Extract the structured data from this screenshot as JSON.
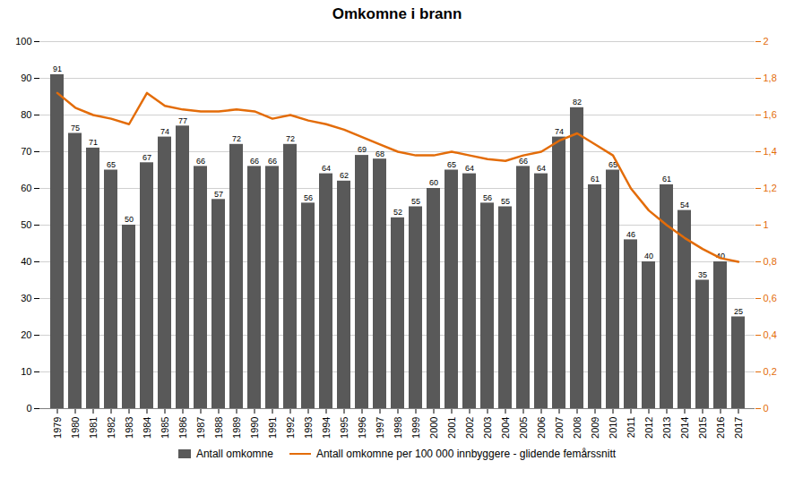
{
  "chart_data": {
    "type": "bar",
    "title": "Omkomne i brann",
    "categories": [
      "1979",
      "1980",
      "1981",
      "1982",
      "1983",
      "1984",
      "1985",
      "1986",
      "1987",
      "1988",
      "1989",
      "1990",
      "1991",
      "1992",
      "1993",
      "1994",
      "1995",
      "1996",
      "1997",
      "1998",
      "1999",
      "2000",
      "2001",
      "2002",
      "2003",
      "2004",
      "2005",
      "2006",
      "2007",
      "2008",
      "2009",
      "2010",
      "2011",
      "2012",
      "2013",
      "2014",
      "2015",
      "2016",
      "2017"
    ],
    "series": [
      {
        "name": "Antall omkomne",
        "type": "bar",
        "color": "#595959",
        "values": [
          91,
          75,
          71,
          65,
          50,
          67,
          74,
          77,
          66,
          57,
          72,
          66,
          66,
          72,
          56,
          64,
          62,
          69,
          68,
          52,
          55,
          60,
          65,
          64,
          56,
          55,
          66,
          64,
          74,
          82,
          61,
          65,
          46,
          40,
          61,
          54,
          35,
          40,
          25
        ]
      },
      {
        "name": "Antall omkomne per 100 000 innbyggere - glidende femårssnitt",
        "type": "line",
        "color": "#E36C09",
        "axis": "y2",
        "values": [
          1.72,
          1.64,
          1.6,
          1.58,
          1.55,
          1.72,
          1.65,
          1.63,
          1.62,
          1.62,
          1.63,
          1.62,
          1.58,
          1.6,
          1.57,
          1.55,
          1.52,
          1.48,
          1.44,
          1.4,
          1.38,
          1.38,
          1.4,
          1.38,
          1.36,
          1.35,
          1.38,
          1.4,
          1.46,
          1.5,
          1.44,
          1.38,
          1.2,
          1.08,
          1.0,
          0.93,
          0.87,
          0.82,
          0.8
        ]
      }
    ],
    "ylim": [
      0,
      100
    ],
    "yticks": [
      0,
      10,
      20,
      30,
      40,
      50,
      60,
      70,
      80,
      90,
      100
    ],
    "y2lim": [
      0,
      2
    ],
    "y2ticks": [
      0,
      {
        "value": 0.2,
        "label": "0,2"
      },
      {
        "value": 0.4,
        "label": "0,4"
      },
      {
        "value": 0.6,
        "label": "0,6"
      },
      {
        "value": 0.8,
        "label": "0,8"
      },
      1,
      {
        "value": 1.2,
        "label": "1,2"
      },
      {
        "value": 1.4,
        "label": "1,4"
      },
      {
        "value": 1.6,
        "label": "1,6"
      },
      {
        "value": 1.8,
        "label": "1,8"
      },
      2
    ],
    "grid": true,
    "data_labels": true,
    "legend": "bottom"
  }
}
